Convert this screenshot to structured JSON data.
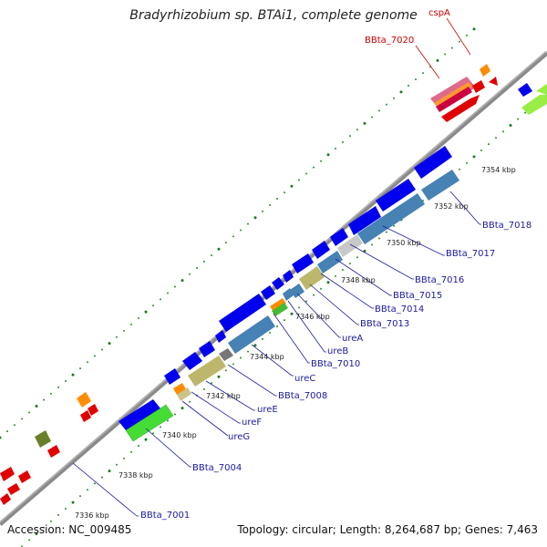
{
  "title": "Bradyrhizobium sp. BTAi1, complete genome",
  "footer": {
    "accession": "Accession: NC_009485",
    "summary": "Topology: circular; Length: 8,264,687 bp; Genes: 7,463"
  },
  "ticks": [
    "7336 kbp",
    "7338 kbp",
    "7340 kbp",
    "7342 kbp",
    "7344 kbp",
    "7346 kbp",
    "7348 kbp",
    "7350 kbp",
    "7352 kbp",
    "7354 kbp"
  ],
  "gene_labels": [
    {
      "id": "BBta_7001",
      "text": "BBta_7001",
      "color": "blue"
    },
    {
      "id": "BBta_7004",
      "text": "BBta_7004",
      "color": "blue"
    },
    {
      "id": "ureG",
      "text": "ureG",
      "color": "blue"
    },
    {
      "id": "ureF",
      "text": "ureF",
      "color": "blue"
    },
    {
      "id": "ureE",
      "text": "ureE",
      "color": "blue"
    },
    {
      "id": "BBta_7008",
      "text": "BBta_7008",
      "color": "blue"
    },
    {
      "id": "ureC",
      "text": "ureC",
      "color": "blue"
    },
    {
      "id": "BBta_7010",
      "text": "BBta_7010",
      "color": "blue"
    },
    {
      "id": "ureB",
      "text": "ureB",
      "color": "blue"
    },
    {
      "id": "ureA",
      "text": "ureA",
      "color": "blue"
    },
    {
      "id": "BBta_7013",
      "text": "BBta_7013",
      "color": "blue"
    },
    {
      "id": "BBta_7014",
      "text": "BBta_7014",
      "color": "blue"
    },
    {
      "id": "BBta_7015",
      "text": "BBta_7015",
      "color": "blue"
    },
    {
      "id": "BBta_7016",
      "text": "BBta_7016",
      "color": "blue"
    },
    {
      "id": "BBta_7017",
      "text": "BBta_7017",
      "color": "blue"
    },
    {
      "id": "BBta_7018",
      "text": "BBta_7018",
      "color": "blue"
    },
    {
      "id": "BBta_7020",
      "text": "BBta_7020",
      "color": "red"
    },
    {
      "id": "cspA",
      "text": "cspA",
      "color": "red"
    }
  ],
  "colors": {
    "backbone": "#888888",
    "tick_major": "#1f7a1f",
    "cds": "#0000ee",
    "gene": "#4682b4",
    "label_blue": "#1a1aa0",
    "label_red": "#cc0000"
  }
}
